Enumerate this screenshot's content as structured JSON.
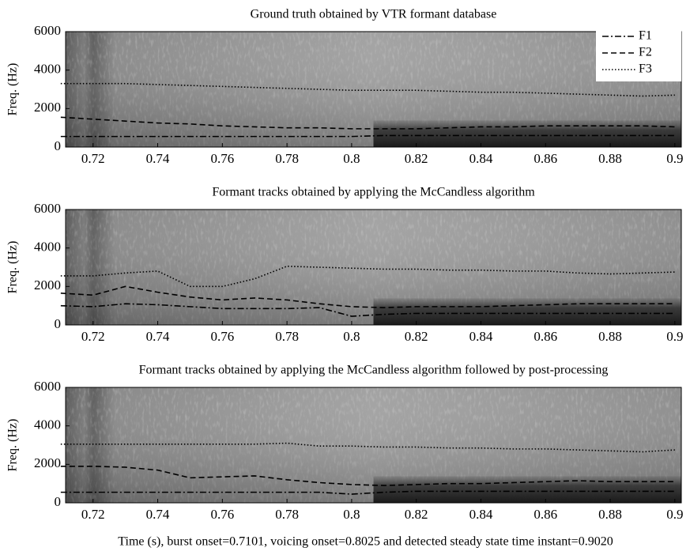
{
  "chart_data": [
    {
      "type": "line",
      "title": "Ground truth obtained by VTR formant database",
      "ylabel": "Freq. (Hz)",
      "x": [
        0.71,
        0.72,
        0.73,
        0.74,
        0.75,
        0.76,
        0.77,
        0.78,
        0.79,
        0.8,
        0.81,
        0.82,
        0.83,
        0.84,
        0.85,
        0.86,
        0.87,
        0.88,
        0.89,
        0.9
      ],
      "xlim": [
        0.7115,
        0.902
      ],
      "xticks": [
        0.72,
        0.74,
        0.76,
        0.78,
        0.8,
        0.82,
        0.84,
        0.86,
        0.88,
        0.9
      ],
      "ylim": [
        0,
        6000
      ],
      "yticks": [
        0,
        2000,
        4000,
        6000
      ],
      "legend": "upper right",
      "series": [
        {
          "name": "F1",
          "color": "#000000",
          "style": "dashdot",
          "values": [
            550,
            550,
            550,
            550,
            550,
            550,
            550,
            550,
            550,
            550,
            600,
            600,
            600,
            600,
            600,
            600,
            600,
            600,
            600,
            600
          ]
        },
        {
          "name": "F2",
          "color": "#000000",
          "style": "dashed",
          "values": [
            1550,
            1450,
            1350,
            1250,
            1200,
            1100,
            1050,
            1000,
            1000,
            950,
            950,
            950,
            1000,
            1050,
            1050,
            1100,
            1100,
            1100,
            1100,
            1050
          ]
        },
        {
          "name": "F3",
          "color": "#000000",
          "style": "dotted",
          "values": [
            3300,
            3300,
            3300,
            3250,
            3200,
            3150,
            3100,
            3050,
            3000,
            2950,
            2950,
            2950,
            2900,
            2850,
            2850,
            2800,
            2750,
            2700,
            2650,
            2700
          ]
        }
      ]
    },
    {
      "type": "line",
      "title": "Formant tracks obtained by applying the McCandless algorithm",
      "ylabel": "Freq. (Hz)",
      "x": [
        0.71,
        0.72,
        0.73,
        0.74,
        0.75,
        0.76,
        0.77,
        0.78,
        0.79,
        0.8,
        0.81,
        0.82,
        0.83,
        0.84,
        0.85,
        0.86,
        0.87,
        0.88,
        0.89,
        0.9
      ],
      "xlim": [
        0.7115,
        0.902
      ],
      "xticks": [
        0.72,
        0.74,
        0.76,
        0.78,
        0.8,
        0.82,
        0.84,
        0.86,
        0.88,
        0.9
      ],
      "ylim": [
        0,
        6000
      ],
      "yticks": [
        0,
        2000,
        4000,
        6000
      ],
      "series": [
        {
          "color": "#000000",
          "style": "dashdot",
          "values": [
            1000,
            950,
            1100,
            1050,
            950,
            850,
            850,
            850,
            900,
            450,
            550,
            600,
            600,
            600,
            600,
            600,
            600,
            600,
            600,
            600
          ]
        },
        {
          "color": "#000000",
          "style": "dashed",
          "values": [
            1650,
            1550,
            2000,
            1700,
            1450,
            1300,
            1400,
            1300,
            1100,
            950,
            900,
            950,
            950,
            950,
            1000,
            1050,
            1100,
            1100,
            1100,
            1100
          ]
        },
        {
          "color": "#000000",
          "style": "dotted",
          "values": [
            2550,
            2550,
            2700,
            2800,
            2000,
            2000,
            2400,
            3050,
            3000,
            2950,
            2900,
            2900,
            2850,
            2850,
            2800,
            2800,
            2700,
            2650,
            2700,
            2750
          ]
        }
      ]
    },
    {
      "type": "line",
      "title": "Formant tracks obtained by applying the McCandless algorithm followed by post-processing",
      "ylabel": "Freq. (Hz)",
      "xlabel": "Time (s), burst onset=0.7101, voicing onset=0.8025 and detected steady state time instant=0.9020",
      "x": [
        0.71,
        0.72,
        0.73,
        0.74,
        0.75,
        0.76,
        0.77,
        0.78,
        0.79,
        0.8,
        0.81,
        0.82,
        0.83,
        0.84,
        0.85,
        0.86,
        0.87,
        0.88,
        0.89,
        0.9
      ],
      "xlim": [
        0.7115,
        0.902
      ],
      "xticks": [
        0.72,
        0.74,
        0.76,
        0.78,
        0.8,
        0.82,
        0.84,
        0.86,
        0.88,
        0.9
      ],
      "ylim": [
        0,
        6000
      ],
      "yticks": [
        0,
        2000,
        4000,
        6000
      ],
      "series": [
        {
          "color": "#000000",
          "style": "dashdot",
          "values": [
            550,
            550,
            550,
            550,
            550,
            550,
            550,
            550,
            550,
            450,
            550,
            600,
            600,
            600,
            600,
            600,
            600,
            600,
            600,
            600
          ]
        },
        {
          "color": "#000000",
          "style": "dashed",
          "values": [
            1900,
            1900,
            1850,
            1700,
            1300,
            1350,
            1400,
            1200,
            1050,
            950,
            900,
            950,
            1000,
            1000,
            1050,
            1100,
            1150,
            1100,
            1100,
            1100
          ]
        },
        {
          "color": "#000000",
          "style": "dotted",
          "values": [
            3050,
            3050,
            3050,
            3050,
            3050,
            3050,
            3050,
            3100,
            2950,
            2950,
            2900,
            2900,
            2850,
            2850,
            2800,
            2800,
            2750,
            2700,
            2650,
            2750
          ]
        }
      ]
    }
  ]
}
